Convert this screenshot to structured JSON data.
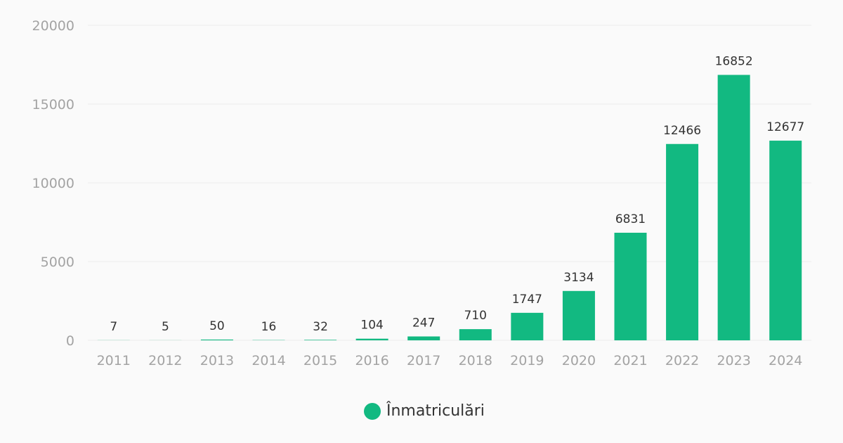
{
  "chart_data": {
    "type": "bar",
    "categories": [
      "2011",
      "2012",
      "2013",
      "2014",
      "2015",
      "2016",
      "2017",
      "2018",
      "2019",
      "2020",
      "2021",
      "2022",
      "2023",
      "2024"
    ],
    "series": [
      {
        "name": "Înmatriculări",
        "values": [
          7,
          5,
          50,
          16,
          32,
          104,
          247,
          710,
          1747,
          3134,
          6831,
          12466,
          16852,
          12677
        ],
        "color": "#12b981"
      }
    ],
    "ylim": [
      0,
      20000
    ],
    "yticks": [
      "0",
      "5000",
      "10000",
      "15000",
      "20000"
    ],
    "grid": true,
    "legend_position": "bottom-center",
    "data_labels": true
  }
}
